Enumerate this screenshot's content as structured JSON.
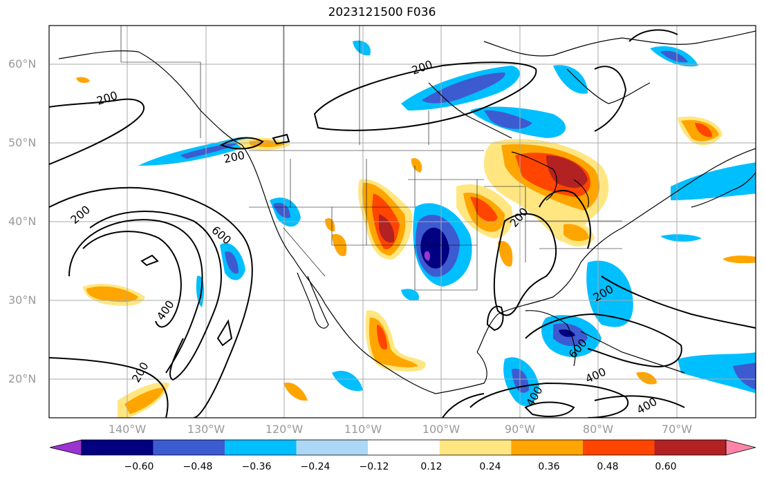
{
  "title": "2023121500 F036",
  "lat_labels": [
    "60°N",
    "50°N",
    "40°N",
    "30°N",
    "20°N"
  ],
  "lon_labels": [
    "140°W",
    "130°W",
    "120°W",
    "110°W",
    "100°W",
    "90°W",
    "80°W",
    "70°W"
  ],
  "colorbar": {
    "colors": [
      "#9b34d0",
      "#000080",
      "#3d5bd0",
      "#00bfff",
      "#add8f5",
      "#ffffff",
      "#ffe680",
      "#ffa500",
      "#ff4500",
      "#b22222",
      "#ff85a8"
    ],
    "ticks": [
      "−0.60",
      "−0.48",
      "−0.36",
      "−0.24",
      "−0.12",
      "0.12",
      "0.24",
      "0.36",
      "0.48",
      "0.60"
    ]
  },
  "contour_labels": [
    "200",
    "200",
    "200",
    "200",
    "200",
    "200",
    "200",
    "400",
    "600",
    "400",
    "400",
    "400",
    "600",
    "400",
    "600"
  ],
  "colors": {
    "frame": "#000000",
    "grid": "#aaaaaa",
    "coast": "#000000"
  }
}
